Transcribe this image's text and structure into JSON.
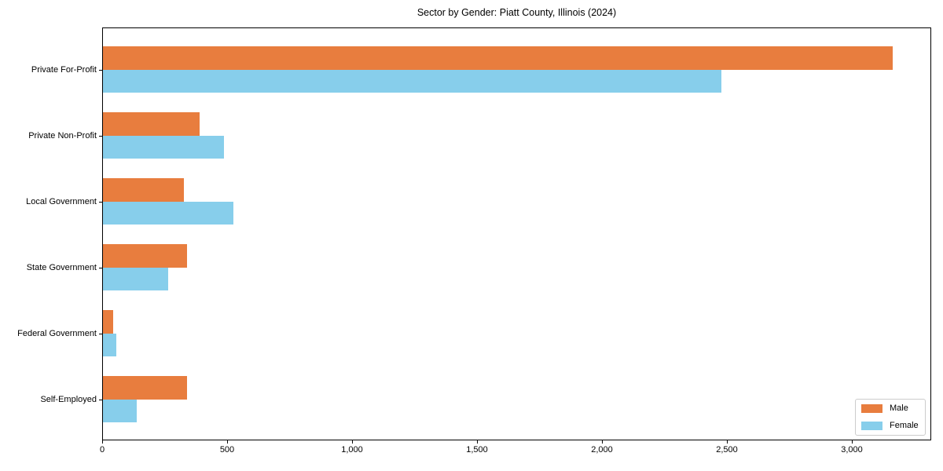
{
  "chart_data": {
    "type": "bar",
    "orientation": "horizontal",
    "title": "Sector by Gender: Piatt County, Illinois (2024)",
    "categories": [
      "Private For-Profit",
      "Private Non-Profit",
      "Local Government",
      "State Government",
      "Federal Government",
      "Self-Employed"
    ],
    "series": [
      {
        "name": "Male",
        "color": "#e87d3e",
        "values": [
          3160,
          386,
          324,
          337,
          40,
          335
        ]
      },
      {
        "name": "Female",
        "color": "#87ceeb",
        "values": [
          2476,
          485,
          521,
          261,
          52,
          135
        ]
      }
    ],
    "xlabel": "",
    "ylabel": "",
    "xlim": [
      0,
      3318
    ],
    "xticks": [
      0,
      500,
      1000,
      1500,
      2000,
      2500,
      3000
    ],
    "xtick_labels": [
      "0",
      "500",
      "1,000",
      "1,500",
      "2,000",
      "2,500",
      "3,000"
    ],
    "grid": false,
    "legend_position": "lower right",
    "background_color": "#ffffff",
    "spine_color": "#000000"
  }
}
